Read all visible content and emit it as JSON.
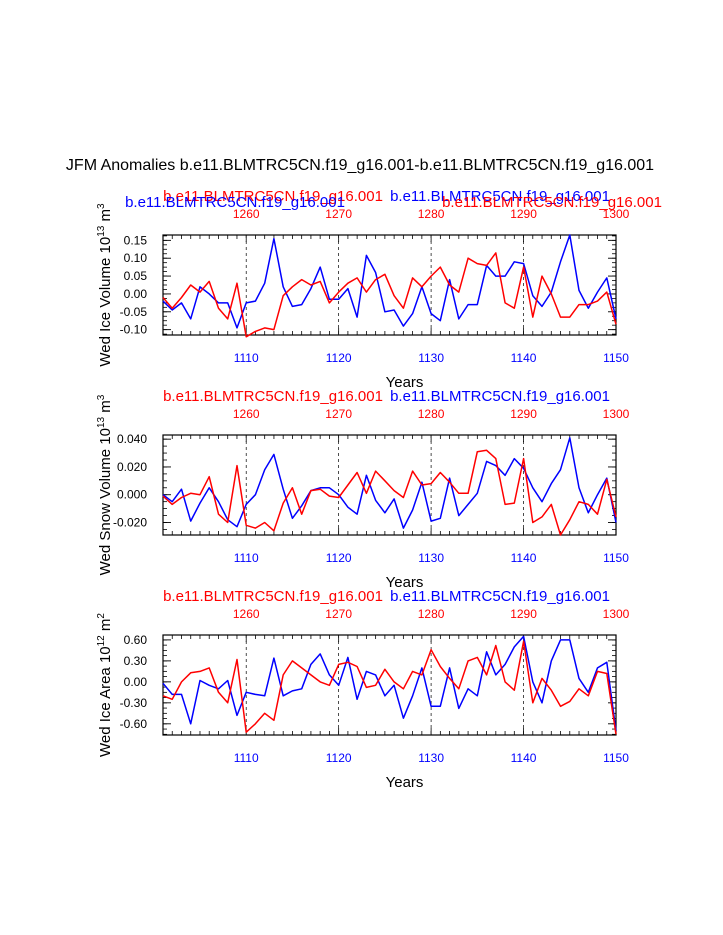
{
  "title": "JFM Anomalies b.e11.BLMTRC5CN.f19_g16.001-b.e11.BLMTRC5CN.f19_g16.001",
  "colors": {
    "blue": "#0000ff",
    "red": "#ff0000",
    "black": "#000000"
  },
  "chart_data": [
    {
      "type": "line",
      "ylabel": "Wed Ice Volume 10",
      "ylabel_exp": "13",
      "ylabel_unit": " m",
      "ylabel_unit_exp": "3",
      "xlabel": "Years",
      "bottom_ticks": [
        "1110",
        "1120",
        "1130",
        "1140",
        "1150"
      ],
      "bottom_tick_values": [
        1110,
        1120,
        1130,
        1140,
        1150
      ],
      "top_ticks": [
        "1260",
        "1270",
        "1280",
        "1290",
        "1300"
      ],
      "top_tick_values": [
        1260,
        1270,
        1280,
        1290,
        1300
      ],
      "y_ticks": [
        "0.15",
        "0.10",
        "0.05",
        "0.00",
        "-0.05",
        "-0.10"
      ],
      "y_tick_values": [
        0.15,
        0.1,
        0.05,
        0.0,
        -0.05,
        -0.1
      ],
      "ylim": [
        -0.115,
        0.165
      ],
      "xlim_bottom": [
        1101,
        1150
      ],
      "xlim_top": [
        1251,
        1300
      ],
      "legend": [
        {
          "name": "b.e11.BLMTRC5CN.f19_g16.001",
          "color": "red",
          "pos": "top-left"
        },
        {
          "name": "b.e11.BLMTRC5CN.f19_g16.001",
          "color": "blue",
          "pos": "top-left-low"
        },
        {
          "name": "b.e11.BLMTRC5CN.f19_g16.001",
          "color": "blue",
          "pos": "top-right"
        },
        {
          "name": "b.e11.BLMTRC5CN.f19_g16.001",
          "color": "red",
          "pos": "top-right-low"
        }
      ],
      "series": [
        {
          "name": "blue",
          "x_start": 1101,
          "values": [
            -0.02,
            -0.045,
            -0.025,
            -0.07,
            0.02,
            0.0,
            -0.025,
            -0.025,
            -0.095,
            -0.025,
            -0.02,
            0.03,
            0.155,
            0.02,
            -0.035,
            -0.03,
            0.015,
            0.075,
            -0.015,
            -0.015,
            0.015,
            -0.065,
            0.108,
            0.06,
            -0.05,
            -0.045,
            -0.09,
            -0.055,
            0.02,
            -0.055,
            -0.075,
            0.04,
            -0.07,
            -0.03,
            -0.03,
            0.08,
            0.05,
            0.05,
            0.09,
            0.085,
            -0.005,
            -0.035,
            0.005,
            0.09,
            0.165,
            0.01,
            -0.04,
            0.005,
            0.045,
            -0.07
          ]
        },
        {
          "name": "red",
          "x_start": 1251,
          "values": [
            -0.01,
            -0.04,
            -0.01,
            0.025,
            0.005,
            0.035,
            -0.04,
            -0.07,
            0.03,
            -0.12,
            -0.105,
            -0.095,
            -0.1,
            -0.005,
            0.02,
            0.04,
            0.025,
            0.035,
            -0.025,
            0.005,
            0.03,
            0.045,
            0.005,
            0.04,
            0.055,
            -0.005,
            -0.04,
            0.045,
            0.02,
            0.05,
            0.075,
            0.025,
            0.005,
            0.1,
            0.085,
            0.08,
            0.115,
            -0.025,
            -0.04,
            0.075,
            -0.065,
            0.05,
            0.0,
            -0.065,
            -0.065,
            -0.03,
            -0.03,
            -0.02,
            0.005,
            -0.085
          ]
        }
      ]
    },
    {
      "type": "line",
      "ylabel": "Wed Snow Volume 10",
      "ylabel_exp": "13",
      "ylabel_unit": " m",
      "ylabel_unit_exp": "3",
      "xlabel": "Years",
      "bottom_ticks": [
        "1110",
        "1120",
        "1130",
        "1140",
        "1150"
      ],
      "bottom_tick_values": [
        1110,
        1120,
        1130,
        1140,
        1150
      ],
      "top_ticks": [
        "1260",
        "1270",
        "1280",
        "1290",
        "1300"
      ],
      "top_tick_values": [
        1260,
        1270,
        1280,
        1290,
        1300
      ],
      "y_ticks": [
        "0.040",
        "0.020",
        "0.000",
        "-0.020"
      ],
      "y_tick_values": [
        0.04,
        0.02,
        0.0,
        -0.02
      ],
      "ylim": [
        -0.029,
        0.043
      ],
      "xlim_bottom": [
        1101,
        1150
      ],
      "xlim_top": [
        1251,
        1300
      ],
      "legend": [
        {
          "name": "b.e11.BLMTRC5CN.f19_g16.001",
          "color": "red",
          "pos": "top-left"
        },
        {
          "name": "b.e11.BLMTRC5CN.f19_g16.001",
          "color": "blue",
          "pos": "top-right"
        }
      ],
      "series": [
        {
          "name": "blue",
          "x_start": 1101,
          "values": [
            0.0,
            -0.005,
            0.004,
            -0.019,
            -0.006,
            0.005,
            -0.005,
            -0.018,
            -0.023,
            -0.007,
            0.0,
            0.018,
            0.029,
            0.004,
            -0.017,
            -0.008,
            0.003,
            0.005,
            0.005,
            0.0,
            -0.009,
            -0.014,
            0.014,
            -0.004,
            -0.013,
            -0.003,
            -0.024,
            -0.011,
            0.009,
            -0.019,
            -0.017,
            0.012,
            -0.015,
            -0.007,
            0.001,
            0.024,
            0.021,
            0.014,
            0.026,
            0.019,
            0.005,
            -0.005,
            0.008,
            0.018,
            0.041,
            0.005,
            -0.013,
            0.0,
            0.012,
            -0.02
          ]
        },
        {
          "name": "red",
          "x_start": 1251,
          "values": [
            -0.001,
            -0.007,
            -0.002,
            0.001,
            0.0,
            0.013,
            -0.014,
            -0.02,
            0.021,
            -0.022,
            -0.024,
            -0.02,
            -0.026,
            -0.006,
            0.005,
            -0.014,
            0.003,
            0.004,
            -0.001,
            -0.002,
            0.007,
            0.016,
            0.001,
            0.017,
            0.01,
            0.003,
            -0.002,
            0.017,
            0.007,
            0.008,
            0.016,
            0.009,
            0.001,
            0.001,
            0.031,
            0.032,
            0.026,
            -0.007,
            -0.006,
            0.026,
            -0.02,
            -0.016,
            -0.007,
            -0.029,
            -0.018,
            -0.005,
            -0.007,
            -0.014,
            0.011,
            -0.016
          ]
        }
      ]
    },
    {
      "type": "line",
      "ylabel": "Wed Ice Area 10",
      "ylabel_exp": "12",
      "ylabel_unit": " m",
      "ylabel_unit_exp": "2",
      "xlabel": "Years",
      "bottom_ticks": [
        "1110",
        "1120",
        "1130",
        "1140",
        "1150"
      ],
      "bottom_tick_values": [
        1110,
        1120,
        1130,
        1140,
        1150
      ],
      "top_ticks": [
        "1260",
        "1270",
        "1280",
        "1290",
        "1300"
      ],
      "top_tick_values": [
        1260,
        1270,
        1280,
        1290,
        1300
      ],
      "y_ticks": [
        "0.60",
        "0.30",
        "0.00",
        "-0.30",
        "-0.60"
      ],
      "y_tick_values": [
        0.6,
        0.3,
        0.0,
        -0.3,
        -0.6
      ],
      "ylim": [
        -0.76,
        0.67
      ],
      "xlim_bottom": [
        1101,
        1150
      ],
      "xlim_top": [
        1251,
        1300
      ],
      "legend": [
        {
          "name": "b.e11.BLMTRC5CN.f19_g16.001",
          "color": "red",
          "pos": "top-left"
        },
        {
          "name": "b.e11.BLMTRC5CN.f19_g16.001",
          "color": "blue",
          "pos": "top-right"
        }
      ],
      "series": [
        {
          "name": "blue",
          "x_start": 1101,
          "values": [
            -0.02,
            -0.18,
            -0.18,
            -0.6,
            0.02,
            -0.05,
            -0.1,
            0.02,
            -0.48,
            -0.15,
            -0.18,
            -0.2,
            0.34,
            -0.2,
            -0.13,
            -0.1,
            0.25,
            0.4,
            0.1,
            -0.05,
            0.35,
            -0.25,
            0.15,
            0.1,
            -0.2,
            -0.05,
            -0.52,
            -0.2,
            0.2,
            -0.35,
            -0.35,
            0.2,
            -0.38,
            -0.1,
            -0.2,
            0.43,
            0.1,
            0.25,
            0.5,
            0.65,
            0.0,
            -0.3,
            0.3,
            0.6,
            0.6,
            0.05,
            -0.15,
            0.2,
            0.28,
            -0.7
          ]
        },
        {
          "name": "red",
          "x_start": 1251,
          "values": [
            -0.2,
            -0.25,
            0.0,
            0.13,
            0.15,
            0.2,
            -0.15,
            -0.3,
            0.32,
            -0.72,
            -0.6,
            -0.45,
            -0.55,
            0.1,
            0.3,
            0.2,
            0.1,
            0.0,
            -0.05,
            0.25,
            0.28,
            0.22,
            -0.08,
            -0.05,
            0.18,
            0.0,
            -0.1,
            0.15,
            0.1,
            0.46,
            0.22,
            0.05,
            -0.1,
            0.3,
            0.35,
            0.1,
            0.52,
            0.0,
            -0.12,
            0.58,
            -0.3,
            0.05,
            -0.12,
            -0.35,
            -0.28,
            -0.1,
            -0.2,
            0.15,
            0.12,
            -0.75
          ]
        }
      ]
    }
  ]
}
